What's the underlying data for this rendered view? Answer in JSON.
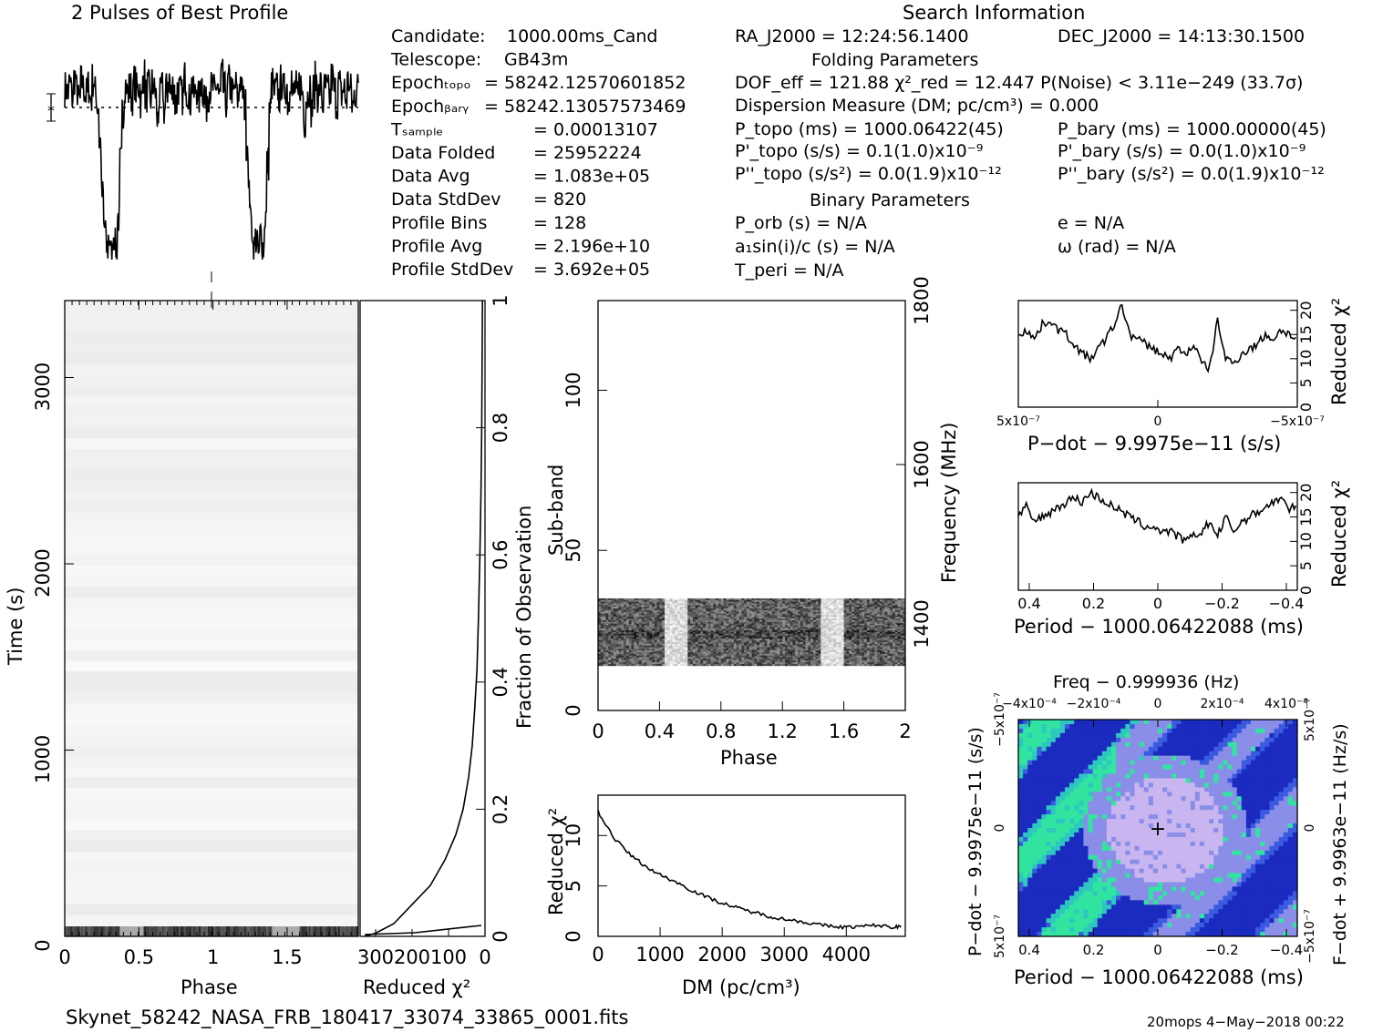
{
  "header": {
    "left_title": "2 Pulses of Best Profile",
    "right_title": "Search Information",
    "folding_title": "Folding Parameters",
    "binary_title": "Binary Parameters"
  },
  "info_left": [
    {
      "label": "Candidate:",
      "value": "1000.00ms_Cand"
    },
    {
      "label": "Telescope:",
      "value": "GB43m"
    },
    {
      "label": "Epoch_topo",
      "value": "= 58242.12570601852"
    },
    {
      "label": "Epoch_bary",
      "value": "= 58242.13057573469"
    },
    {
      "label": "T_sample",
      "value": "=   0.00013107"
    },
    {
      "label": "Data Folded",
      "value": "=   25952224"
    },
    {
      "label": "Data Avg",
      "value": "=   1.083e+05"
    },
    {
      "label": "Data StdDev",
      "value": "=   820"
    },
    {
      "label": "Profile Bins",
      "value": "=   128"
    },
    {
      "label": "Profile Avg",
      "value": "=   2.196e+10"
    },
    {
      "label": "Profile StdDev",
      "value": "=   3.692e+05"
    }
  ],
  "info_mid": {
    "ra": "RA_J2000 = 12:24:56.1400",
    "dec": "DEC_J2000 = 14:13:30.1500",
    "dof": "DOF_eff = 121.88  χ²_red = 12.447  P(Noise) < 3.11e−249  (33.7σ)",
    "dm": "Dispersion Measure (DM; pc/cm³) = 0.000",
    "p_topo": "P_topo (ms) =  1000.06422(45)",
    "p_bary": "P_bary (ms) =  1000.00000(45)",
    "pd_topo": "P'_topo (s/s) =  0.1(1.0)x10⁻⁹",
    "pd_bary": "P'_bary (s/s) = 0.0(1.0)x10⁻⁹",
    "pdd_topo": "P''_topo (s/s²) = 0.0(1.9)x10⁻¹²",
    "pdd_bary": "P''_bary (s/s²) = 0.0(1.9)x10⁻¹²",
    "porb": "P_orb (s) = N/A",
    "ecc": "e = N/A",
    "asini": "a₁sin(i)/c (s) = N/A",
    "omega": "ω (rad) = N/A",
    "tperi": "T_peri = N/A"
  },
  "footer": {
    "filename": "Skynet_58242_NASA_FRB_180417_33074_33865_0001.fits",
    "stamp": "20mops  4−May−2018 00:22"
  },
  "chart_data": [
    {
      "type": "line",
      "id": "profile",
      "title": "2 Pulses of Best Profile",
      "x": "phase 0-2 (two copies of profile)",
      "dips_at_phase": [
        0.25,
        1.25
      ],
      "values": [
        0.8,
        0.78,
        0.82,
        0.76,
        0.85,
        0.79,
        0.74,
        0.83,
        0.8,
        0.77,
        0.81,
        0.75,
        0.84,
        0.78,
        0.72,
        0.55,
        0.3,
        0.15,
        0.05,
        0.1,
        0.02,
        0.12,
        0.06,
        0.2,
        0.45,
        0.7,
        0.82,
        0.78,
        0.8,
        0.76,
        0.83,
        0.79,
        0.81,
        0.74,
        0.86,
        0.77,
        0.8,
        0.75,
        0.82,
        0.78,
        0.65,
        0.76,
        0.8,
        0.7,
        0.79,
        0.84,
        0.77,
        0.81,
        0.73,
        0.8,
        0.78,
        0.76,
        0.85,
        0.79,
        0.74,
        0.82,
        0.77,
        0.8,
        0.75,
        0.83,
        0.79,
        0.72,
        0.78,
        0.8
      ]
    },
    {
      "type": "heatmap",
      "id": "time-phase",
      "xlabel": "Phase",
      "ylabel": "Time (s)",
      "xticks": [
        "0",
        "0.5",
        "1",
        "1.5"
      ],
      "yticks": [
        "0",
        "1000",
        "2000",
        "3000"
      ]
    },
    {
      "type": "line",
      "id": "chi-vs-fraction",
      "xlabel": "Reduced χ²",
      "ylabel": "Fraction of Observation",
      "xticks": [
        "300",
        "200",
        "100",
        "0"
      ],
      "yticks": [
        "0",
        "0.2",
        "0.4",
        "0.6",
        "0.8",
        "1"
      ],
      "x": [
        330,
        300,
        250,
        200,
        150,
        110,
        80,
        60,
        45,
        35,
        28,
        22,
        18,
        14,
        11,
        9,
        8,
        7
      ],
      "y": [
        0,
        0.005,
        0.02,
        0.05,
        0.08,
        0.12,
        0.16,
        0.2,
        0.25,
        0.3,
        0.36,
        0.42,
        0.5,
        0.6,
        0.7,
        0.8,
        0.9,
        1.0
      ]
    },
    {
      "type": "heatmap",
      "id": "subband-phase",
      "xlabel": "Phase",
      "ylabel": "Sub-band",
      "y2label": "Frequency (MHz)",
      "xticks": [
        "0",
        "0.4",
        "0.8",
        "1.2",
        "1.6",
        "2"
      ],
      "yticks": [
        "0",
        "50",
        "100"
      ],
      "y2ticks": [
        "1400",
        "1600",
        "1800"
      ],
      "active_subbands": [
        14,
        35
      ]
    },
    {
      "type": "line",
      "id": "dm-chi",
      "xlabel": "DM (pc/cm³)",
      "ylabel": "Reduced χ²",
      "xticks": [
        "0",
        "1000",
        "2000",
        "3000",
        "4000"
      ],
      "yticks": [
        "0",
        "5",
        "10"
      ],
      "x": [
        0,
        250,
        500,
        750,
        1000,
        1250,
        1500,
        1750,
        2000,
        2250,
        2500,
        2750,
        3000,
        3250,
        3500,
        3750,
        4000,
        4250,
        4500,
        4750,
        4900
      ],
      "y": [
        12.4,
        9.8,
        8.2,
        7.0,
        6.1,
        5.4,
        4.6,
        3.9,
        3.3,
        2.8,
        2.4,
        2.0,
        1.7,
        1.5,
        1.2,
        1.0,
        0.9,
        1.0,
        1.1,
        0.9,
        1.0
      ]
    },
    {
      "type": "line",
      "id": "pdot-chi",
      "xlabel": "P−dot − 9.9975e−11 (s/s)",
      "ylabel": "Reduced χ²",
      "xticks": [
        "5x10⁻⁷",
        "0",
        "−5x10⁻⁷"
      ],
      "yticks": [
        "0",
        "5",
        "10",
        "15",
        "20"
      ],
      "values": [
        15,
        16,
        14,
        17,
        18,
        16,
        15,
        13,
        11,
        10,
        12,
        14,
        17,
        21,
        15,
        14,
        13,
        12,
        11,
        10,
        12,
        11,
        13,
        9,
        8,
        18,
        10,
        9,
        11,
        12,
        13,
        15,
        14,
        16,
        15,
        14
      ]
    },
    {
      "type": "line",
      "id": "period-chi",
      "xlabel": "Period − 1000.06422088 (ms)",
      "ylabel": "Reduced χ²",
      "xticks": [
        "0.4",
        "0.2",
        "0",
        "−0.2",
        "−0.4"
      ],
      "yticks": [
        "0",
        "5",
        "10",
        "15",
        "20"
      ],
      "values": [
        15,
        17,
        14,
        15,
        16,
        17,
        18,
        19,
        18,
        20,
        19,
        18,
        17,
        16,
        15,
        14,
        13,
        13,
        12,
        12,
        11,
        10,
        11,
        12,
        14,
        11,
        15,
        12,
        14,
        15,
        16,
        17,
        18,
        19,
        16,
        18
      ]
    },
    {
      "type": "heatmap",
      "id": "period-pdot",
      "title": "Freq − 0.999936 (Hz)",
      "xlabel": "Period − 1000.06422088 (ms)",
      "ylabel": "P−dot − 9.9975e−11 (s/s)",
      "y2label": "F−dot + 9.9963e−11 (Hz/s)",
      "xticks": [
        "0.4",
        "0.2",
        "0",
        "−0.2",
        "−0.4"
      ],
      "x2ticks": [
        "−4x10⁻⁴",
        "−2x10⁻⁴",
        "0",
        "2x10⁻⁴",
        "4x10⁻⁴"
      ],
      "yticks": [
        "5x10⁻⁷",
        "0",
        "−5x10⁻⁷"
      ],
      "y2ticks": [
        "−5x10⁻⁷",
        "0",
        "5x10⁻⁷"
      ],
      "colors": [
        "#1b2bbf",
        "#3a5ae0",
        "#2ec7c0",
        "#31e4a0",
        "#8a8ee8",
        "#c9b6f0"
      ]
    }
  ]
}
